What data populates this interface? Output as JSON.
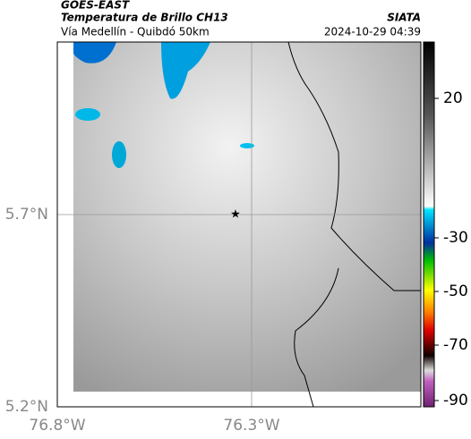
{
  "header": {
    "title": "GOES-EAST",
    "subtitle": "Temperatura de Brillo CH13",
    "route": "Vía Medellín - Quibdó 50km",
    "source": "SIATA",
    "datetime": "2024-10-29 04:39"
  },
  "map": {
    "lat_labels": [
      "5.7°N",
      "5.2°N"
    ],
    "lon_labels": [
      "76.8°W",
      "76.3°W"
    ]
  },
  "colorbar": {
    "ticks": [
      20,
      -30,
      -50,
      -70,
      -90
    ]
  }
}
